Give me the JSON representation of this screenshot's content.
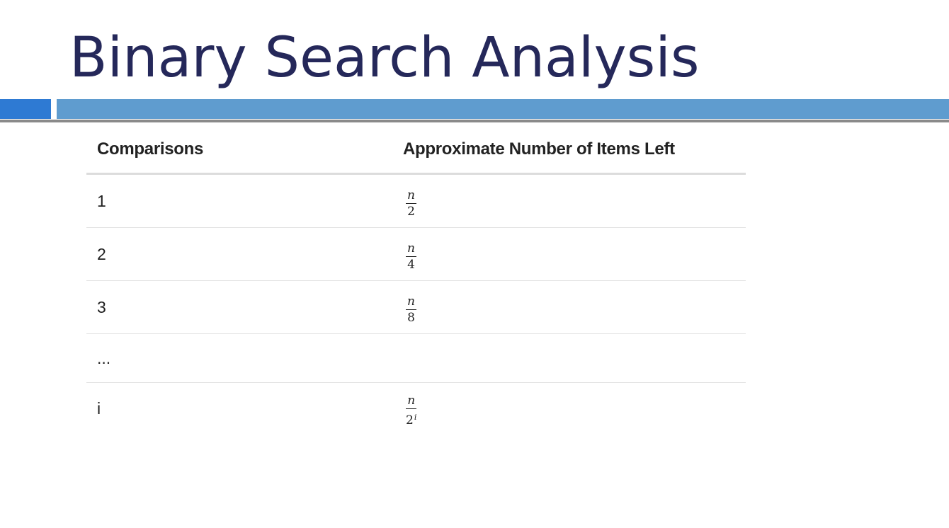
{
  "slide": {
    "title": "Binary Search Analysis"
  },
  "table": {
    "headers": [
      "Comparisons",
      "Approximate Number of Items Left"
    ],
    "rows": [
      {
        "comparisons": "1",
        "numerator": "n",
        "denominator": "2",
        "exponent": ""
      },
      {
        "comparisons": "2",
        "numerator": "n",
        "denominator": "4",
        "exponent": ""
      },
      {
        "comparisons": "3",
        "numerator": "n",
        "denominator": "8",
        "exponent": ""
      },
      {
        "comparisons": "...",
        "numerator": "",
        "denominator": "",
        "exponent": ""
      },
      {
        "comparisons": "i",
        "numerator": "n",
        "denominator": "2",
        "exponent": "i"
      }
    ]
  },
  "colors": {
    "title": "#25285a",
    "accent_bar_left": "#2e7ad3",
    "accent_bar_right": "#5f9ccf",
    "rule": "#8a8a8a"
  }
}
